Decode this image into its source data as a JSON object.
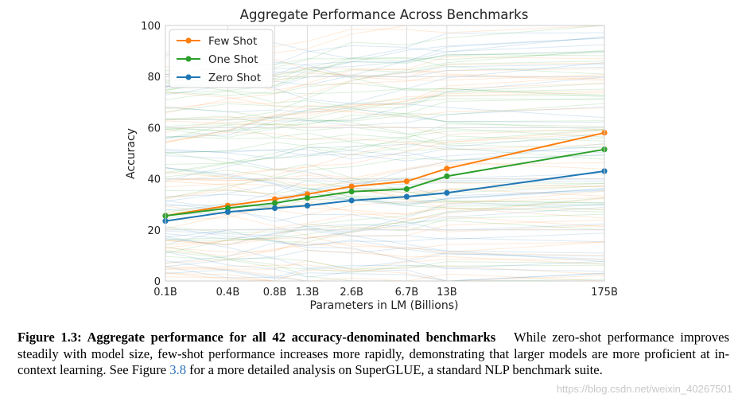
{
  "chart_data": {
    "type": "line",
    "title": "Aggregate Performance Across Benchmarks",
    "xlabel": "Parameters in LM (Billions)",
    "ylabel": "Accuracy",
    "ylim": [
      0,
      100
    ],
    "yticks": [
      "0",
      "20",
      "40",
      "60",
      "80",
      "100"
    ],
    "x_scale": "log",
    "x_params_billions": [
      0.125,
      0.35,
      0.76,
      1.3,
      2.7,
      6.7,
      13,
      175
    ],
    "categories": [
      "0.1B",
      "0.4B",
      "0.8B",
      "1.3B",
      "2.6B",
      "6.7B",
      "13B",
      "175B"
    ],
    "grid": true,
    "legend_placement": "top-left",
    "series": [
      {
        "name": "Few Shot",
        "color": "#ff7f0e",
        "values": [
          25.5,
          29.5,
          32,
          34,
          37,
          39,
          44,
          58
        ]
      },
      {
        "name": "One Shot",
        "color": "#2ca02c",
        "values": [
          25.5,
          28.5,
          30.5,
          32.5,
          35,
          36,
          41,
          51.5
        ]
      },
      {
        "name": "Zero Shot",
        "color": "#1f77b4",
        "values": [
          23.5,
          27,
          28.5,
          29.5,
          31.5,
          33,
          34.5,
          43
        ]
      }
    ]
  },
  "caption": {
    "bold": "Figure 1.3: Aggregate performance for all 42 accuracy-denominated benchmarks",
    "text1": "While zero-shot performance improves steadily with model size, few-shot performance increases more rapidly, demonstrating that larger models are more proficient at in-context learning. See Figure",
    "ref": "3.8",
    "text2": "for a more detailed analysis on SuperGLUE, a standard NLP benchmark suite."
  },
  "watermark": "https://blog.csdn.net/weixin_40267501"
}
